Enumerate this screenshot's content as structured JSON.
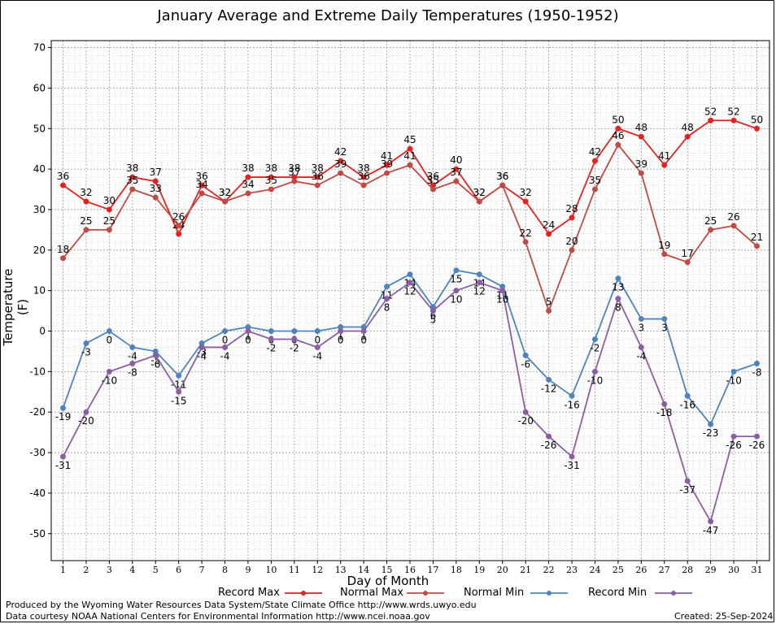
{
  "chart_data": {
    "type": "line",
    "title": "January Average and Extreme Daily Temperatures (1950-1952)",
    "xlabel": "Day of Month",
    "ylabel": "Temperature (F)",
    "ylim": [
      -58,
      72
    ],
    "yticks": [
      70,
      60,
      50,
      40,
      30,
      20,
      10,
      0,
      -10,
      -20,
      -30,
      -40,
      -50
    ],
    "x": [
      1,
      2,
      3,
      4,
      5,
      6,
      7,
      8,
      9,
      10,
      11,
      12,
      13,
      14,
      15,
      16,
      17,
      18,
      19,
      20,
      21,
      22,
      23,
      24,
      25,
      26,
      27,
      28,
      29,
      30,
      31
    ],
    "grid": true,
    "legend_position": "bottom",
    "series": [
      {
        "name": "Record Max",
        "color": "#e8201e",
        "values": [
          36,
          32,
          30,
          38,
          37,
          24,
          36,
          32,
          38,
          38,
          38,
          38,
          42,
          38,
          41,
          45,
          36,
          40,
          32,
          36,
          32,
          24,
          28,
          42,
          50,
          48,
          41,
          48,
          52,
          52,
          50
        ]
      },
      {
        "name": "Normal Max",
        "color": "#bf4b45",
        "values": [
          18,
          25,
          25,
          35,
          33,
          26,
          34,
          32,
          34,
          35,
          37,
          36,
          39,
          36,
          39,
          41,
          35,
          37,
          32,
          36,
          22,
          5,
          20,
          35,
          46,
          39,
          19,
          17,
          25,
          26,
          21
        ]
      },
      {
        "name": "Normal Min",
        "color": "#4d84bd",
        "values": [
          -19,
          -3,
          0,
          -4,
          -5,
          -11,
          -3,
          0,
          1,
          0,
          0,
          0,
          1,
          1,
          11,
          14,
          6,
          15,
          14,
          11,
          -6,
          -12,
          -16,
          -2,
          13,
          3,
          3,
          -16,
          -23,
          -10,
          -8
        ]
      },
      {
        "name": "Record Min",
        "color": "#8b5ea3",
        "values": [
          -31,
          -20,
          -10,
          -8,
          -6,
          -15,
          -4,
          -4,
          0,
          -2,
          -2,
          -4,
          0,
          0,
          8,
          12,
          5,
          10,
          12,
          10,
          -20,
          -26,
          -31,
          -10,
          8,
          -4,
          -18,
          -37,
          -47,
          -26,
          -26
        ]
      }
    ]
  },
  "footer": {
    "produced_by": "Produced by the Wyoming Water Resources Data System/State Climate Office http://www.wrds.uwyo.edu",
    "courtesy": "Data courtesy NOAA National Centers for Environmental Information http://www.ncei.noaa.gov",
    "created": "Created:  25-Sep-2024"
  }
}
